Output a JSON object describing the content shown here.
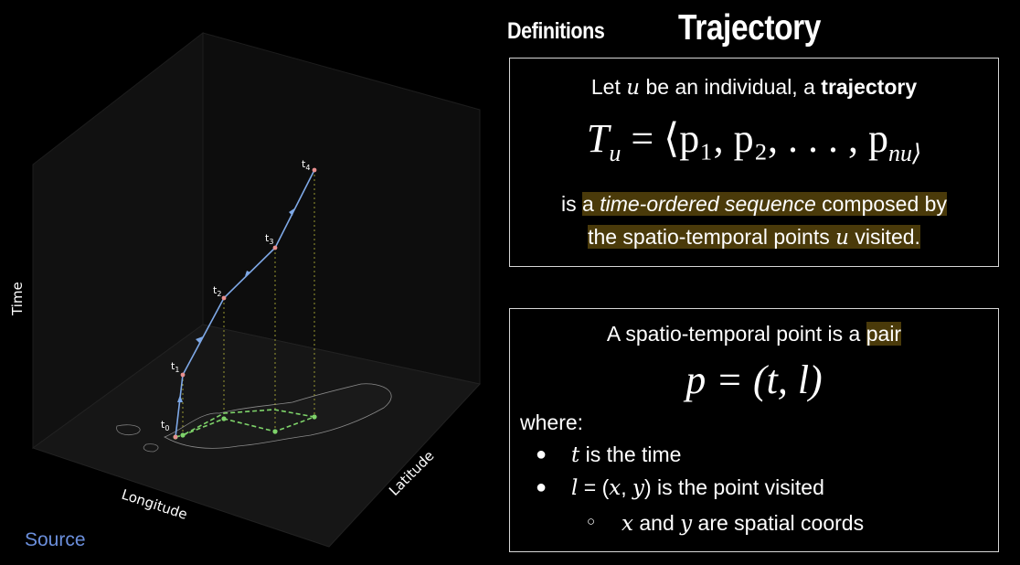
{
  "header": {
    "section": "Definitions",
    "title": "Trajectory"
  },
  "figure": {
    "axis_time": "Time",
    "axis_longitude": "Longitude",
    "axis_latitude": "Latitude",
    "points": [
      "t0",
      "t1",
      "t2",
      "t3",
      "t4"
    ],
    "source_link": "Source",
    "colors": {
      "trajectory": "#7ea8e6",
      "projection": "#7ed36a",
      "source": "#6b8fdc"
    }
  },
  "box1": {
    "line1_pre": "Let ",
    "line1_var": "u",
    "line1_mid": " be an individual, a ",
    "line1_bold": "trajectory",
    "formula_lhs": "T",
    "formula_sub": "u",
    "formula_rhs": " = ⟨p₁, p₂, . . . , p",
    "formula_end": "nu⟩",
    "line3_pre": "is ",
    "line3_hl1": "a ",
    "line3_italic": "time-ordered sequence",
    "line3_hl2": " composed by",
    "line4_pre": "the spatio-temporal points ",
    "line4_var": "u",
    "line4_post": " visited."
  },
  "box2": {
    "line1_pre": "A spatio-temporal point is a ",
    "line1_hl": "pair",
    "formula": "p = (t, l)",
    "where": "where:",
    "bullet1_var": "t",
    "bullet1_text": " is the time",
    "bullet2_var": "l",
    "bullet2_eq": " = (",
    "bullet2_x": "x",
    "bullet2_comma": ", ",
    "bullet2_y": "y",
    "bullet2_text": ") is the point visited",
    "sub_x": "x",
    "sub_and": " and ",
    "sub_y": "y",
    "sub_text": " are spatial coords"
  }
}
